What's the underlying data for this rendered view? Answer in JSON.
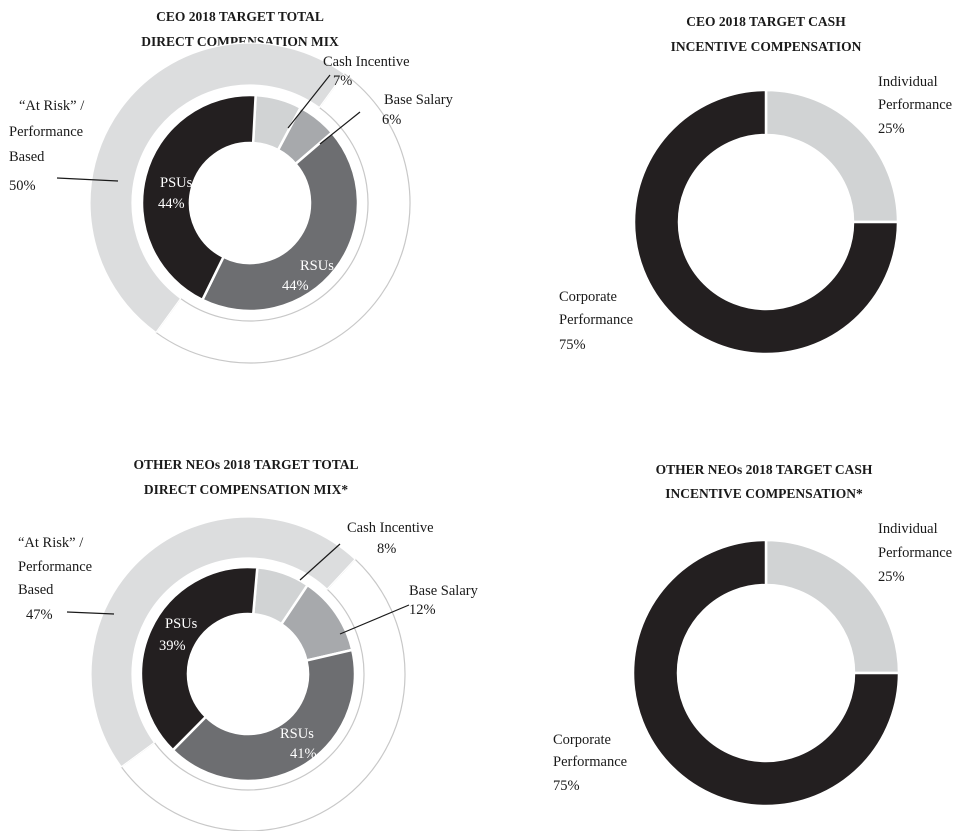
{
  "charts": [
    {
      "title": [
        "CEO 2018 TARGET TOTAL",
        "DIRECT COMPENSATION MIX"
      ],
      "outer_labels": {
        "at_risk": [
          "“At Risk” /",
          "Performance",
          "Based"
        ],
        "at_risk_pct": "50%",
        "cash": [
          "Cash Incentive",
          "7%"
        ],
        "base": [
          "Base Salary",
          "6%"
        ]
      },
      "inner_labels": {
        "psus": [
          "PSUs",
          "44%"
        ],
        "rsus": [
          "RSUs",
          "44%"
        ]
      }
    },
    {
      "title": [
        "CEO 2018 TARGET CASH",
        "INCENTIVE COMPENSATION"
      ],
      "labels": {
        "individual": [
          "Individual",
          "Performance",
          "25%"
        ],
        "corporate": [
          "Corporate",
          "Performance",
          "75%"
        ]
      }
    },
    {
      "title": [
        "OTHER NEOs 2018 TARGET TOTAL",
        "DIRECT COMPENSATION MIX*"
      ],
      "outer_labels": {
        "at_risk": [
          "“At Risk” /",
          "Performance",
          "Based"
        ],
        "at_risk_pct": "47%",
        "cash": [
          "Cash Incentive",
          "8%"
        ],
        "base": [
          "Base Salary",
          "12%"
        ]
      },
      "inner_labels": {
        "psus": [
          "PSUs",
          "39%"
        ],
        "rsus": [
          "RSUs",
          "41%"
        ]
      }
    },
    {
      "title": [
        "OTHER NEOs 2018 TARGET CASH",
        "INCENTIVE COMPENSATION*"
      ],
      "labels": {
        "individual": [
          "Individual",
          "Performance",
          "25%"
        ],
        "corporate": [
          "Corporate",
          "Performance",
          "75%"
        ]
      }
    }
  ],
  "chart_data": [
    {
      "type": "pie",
      "title": "CEO 2018 TARGET TOTAL DIRECT COMPENSATION MIX",
      "series": [
        {
          "name": "inner",
          "categories": [
            "Cash Incentive",
            "Base Salary",
            "RSUs",
            "PSUs"
          ],
          "values": [
            7,
            6,
            44,
            44
          ]
        },
        {
          "name": "outer",
          "categories": [
            "“At Risk” / Performance Based",
            "Other"
          ],
          "values": [
            50,
            50
          ]
        }
      ]
    },
    {
      "type": "pie",
      "title": "CEO 2018 TARGET CASH INCENTIVE COMPENSATION",
      "categories": [
        "Individual Performance",
        "Corporate Performance"
      ],
      "values": [
        25,
        75
      ]
    },
    {
      "type": "pie",
      "title": "OTHER NEOs 2018 TARGET TOTAL DIRECT COMPENSATION MIX*",
      "series": [
        {
          "name": "inner",
          "categories": [
            "Cash Incentive",
            "Base Salary",
            "RSUs",
            "PSUs"
          ],
          "values": [
            8,
            12,
            41,
            39
          ]
        },
        {
          "name": "outer",
          "categories": [
            "“At Risk” / Performance Based",
            "Other"
          ],
          "values": [
            47,
            53
          ]
        }
      ]
    },
    {
      "type": "pie",
      "title": "OTHER NEOs 2018 TARGET CASH INCENTIVE COMPENSATION*",
      "categories": [
        "Individual Performance",
        "Corporate Performance"
      ],
      "values": [
        25,
        75
      ]
    }
  ],
  "colors": {
    "psus": "#231f20",
    "rsus": "#6d6e71",
    "base": "#a7a9ac",
    "cash": "#d1d3d4",
    "at_risk": "#dcddde",
    "outer_rest": "#ffffff",
    "ring_stroke": "#c8c8c8",
    "seg_stroke": "#ffffff"
  }
}
